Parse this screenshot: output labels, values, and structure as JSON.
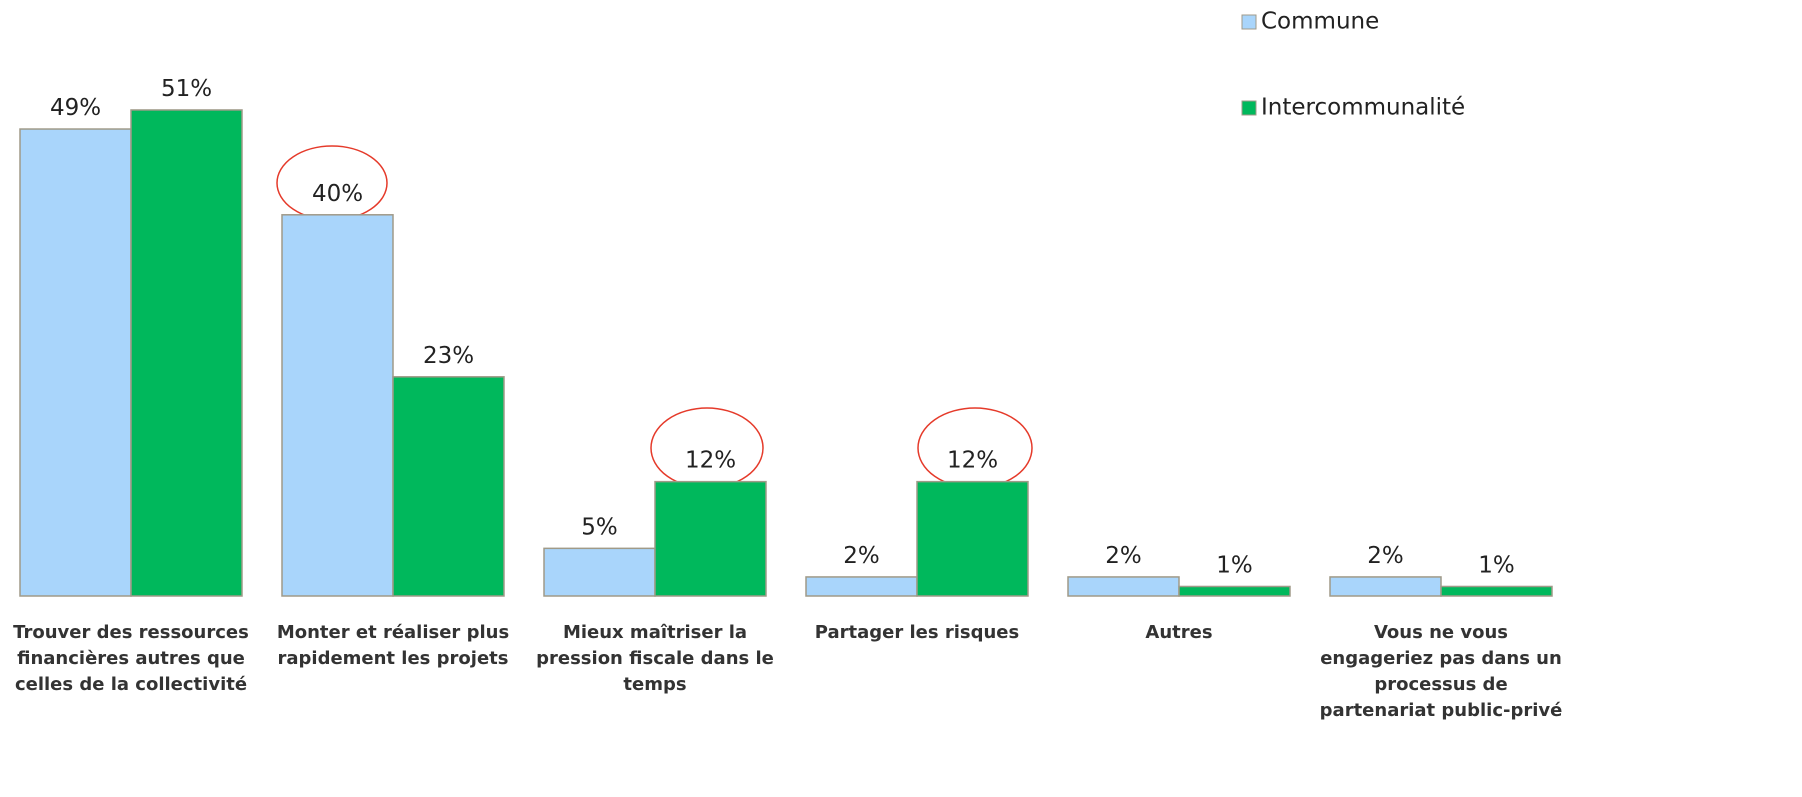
{
  "chart_data": {
    "type": "bar",
    "categories": [
      "Trouver des ressources financières autres que celles de la collectivité",
      "Monter et réaliser plus rapidement les projets",
      "Mieux maîtriser la pression fiscale dans le temps",
      "Partager les risques",
      "Autres",
      "Vous ne vous engageriez pas dans un processus de partenariat public-privé"
    ],
    "series": [
      {
        "name": "Commune",
        "color": "#a9d5fb",
        "values": [
          49,
          40,
          5,
          2,
          2,
          2
        ],
        "value_labels": [
          "49%",
          "40%",
          "5%",
          "2%",
          "2%",
          "2%"
        ]
      },
      {
        "name": "Intercommunalité",
        "color": "#00b85c",
        "values": [
          51,
          23,
          12,
          12,
          1,
          1
        ],
        "value_labels": [
          "51%",
          "23%",
          "12%",
          "12%",
          "1%",
          "1%"
        ]
      }
    ],
    "legend": "top-right"
  }
}
